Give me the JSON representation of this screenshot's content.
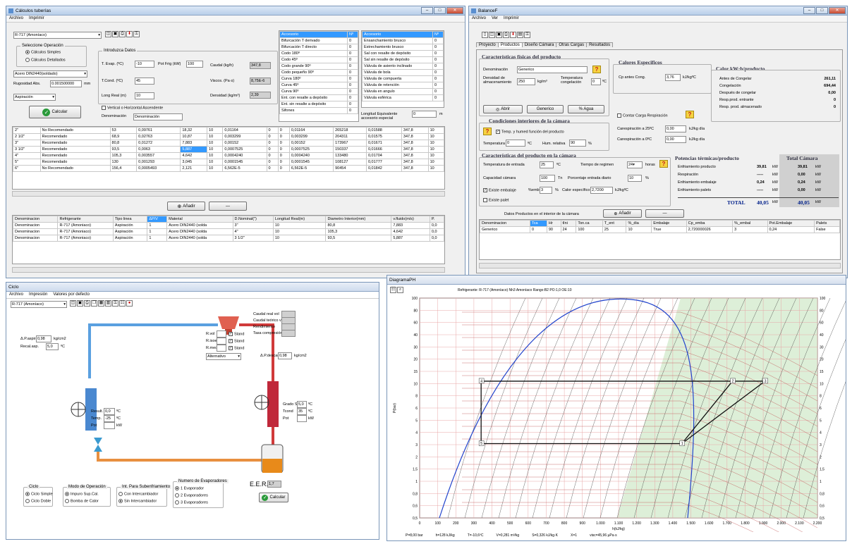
{
  "tuberias": {
    "title": "Cálculos tuberías",
    "menu": [
      "Archivo",
      "Imprimir"
    ],
    "refrigerant": "R-717 (Amoníaco)",
    "sel_op_title": "Seleccione Operación",
    "op_simple": "Cálculos Simples",
    "op_detalle": "Cálculos Detallados",
    "material": "Acero DIN2440(soldado)",
    "rug_label": "Rugosidad Abs.",
    "rug_value": "0.001500000",
    "rug_unit": "mm",
    "line_type": "Aspiración",
    "calc_button": "Calcular",
    "intro_title": "Introduzca Datos",
    "tevap_label": "T. Evap. (ºC)",
    "tevap_value": "-10",
    "pot_label": "Pot Frig (kW)",
    "pot_value": "100",
    "caudal_label": "Caudal (kg/h)",
    "caudal_value": "347,8",
    "tcond_label": "T.Cond. (ºC)",
    "tcond_value": "45",
    "visc_label": "Viscos. (Pa·s)",
    "visc_value": "8,75E-6",
    "long_label": "Long Real (m)",
    "long_value": "10",
    "dens_label": "Densidad (kg/m³)",
    "dens_value": "2,39",
    "vertical": "Vertical o Horizontal Ascendente",
    "denom_label": "Denominación",
    "denom_value": "Denominación",
    "acc_headers": [
      "Accesorio",
      "Nº"
    ],
    "acc1": [
      [
        "Bifurcación T derivado",
        "0"
      ],
      [
        "Bifurcación T directo",
        "0"
      ],
      [
        "Codo 180º",
        "0"
      ],
      [
        "Codo 45º",
        "0"
      ],
      [
        "Codo grande 90º",
        "0"
      ],
      [
        "Codo pequeño 90º",
        "0"
      ],
      [
        "Curva 180º",
        "0"
      ],
      [
        "Curva 45º",
        "0"
      ],
      [
        "Curva 90º",
        "0"
      ],
      [
        "Ent. con resalte a depósito",
        "0"
      ],
      [
        "Ent. sin resalte a depósito",
        "0"
      ],
      [
        "Sifones",
        "0"
      ]
    ],
    "acc2": [
      [
        "Ensanchamiento brusco",
        "0"
      ],
      [
        "Estrechamiento brusco",
        "0"
      ],
      [
        "Sal con resalte de depósito",
        "0"
      ],
      [
        "Sal sin resalte de depósito",
        "0"
      ],
      [
        "Válvula de asiento inclinado",
        "0"
      ],
      [
        "Válvula de bola",
        "0"
      ],
      [
        "Válvula de compuerta",
        "0"
      ],
      [
        "Válvula de retención",
        "0"
      ],
      [
        "Válvula en angulo",
        "0"
      ],
      [
        "Válvula esférica",
        "0"
      ]
    ],
    "leq_label": "Longitud Equivalente accesorio especial",
    "leq_value": "0",
    "leq_unit": "m",
    "results": [
      [
        "2\"",
        "No Recomendado",
        "53",
        "0,09761",
        "18,32",
        "10",
        "0,01164",
        "0",
        "0",
        "0,01164",
        "265218",
        "0,01588",
        "347,8",
        "10"
      ],
      [
        "2 1/2\"",
        "Recomendado",
        "68,9",
        "0,02763",
        "10,87",
        "10",
        "0,003299",
        "0",
        "0",
        "0,003299",
        "204311",
        "0,01575",
        "347,8",
        "10"
      ],
      [
        "3\"",
        "Recomendado",
        "80,8",
        "0,01272",
        "7,883",
        "10",
        "0,00152",
        "0",
        "0",
        "0,00152",
        "173967",
        "0,01671",
        "347,8",
        "10"
      ],
      [
        "3 1/2\"",
        "Recomendado",
        "93,5",
        "0,0063",
        "5,887",
        "10",
        "0,0007525",
        "0",
        "0",
        "0,0007525",
        "150337",
        "0,01666",
        "347,8",
        "10"
      ],
      [
        "4\"",
        "Recomendado",
        "105,3",
        "0,003557",
        "4,642",
        "10",
        "0,0004240",
        "0",
        "0",
        "0,0004240",
        "133480",
        "0,01704",
        "347,8",
        "10"
      ],
      [
        "5\"",
        "Recomendado",
        "130",
        "0,001293",
        "3,045",
        "10",
        "0,0001545",
        "0",
        "0",
        "0,0001545",
        "108127",
        "0,01777",
        "347,8",
        "10"
      ],
      [
        "6\"",
        "No Recomendado",
        "156,4",
        "0,0005493",
        "2,121",
        "10",
        "6,562E-5",
        "0",
        "0",
        "6,562E-5",
        "90454",
        "0,01842",
        "347,8",
        "10"
      ]
    ],
    "add_button": "Añadir",
    "minus_button": "—",
    "lower_headers": [
      "Denominacion",
      "Refrigerante",
      "Tipo linea",
      "ΔP/V",
      "Material",
      "D.Nominal(\")",
      "Longitud Real(m)",
      "Diametro Interior(mm)",
      "v.fluido(m/s)",
      "P."
    ],
    "lower_rows": [
      [
        "Denominacion",
        "R-717 (Amoniaco)",
        "Aspiración",
        "1",
        "Acero DIN2440 (solda",
        "3\"",
        "10",
        "80,8",
        "7,883",
        "0,0"
      ],
      [
        "Denominacion",
        "R-717 (Amoniaco)",
        "Aspiración",
        "1",
        "Acero DIN2440 (solda",
        "4\"",
        "10",
        "105,3",
        "4,642",
        "0,0"
      ],
      [
        "Denominacion",
        "R-717 (Amoniaco)",
        "Aspiración",
        "1",
        "Acero DIN2440 (solda",
        "3 1/2\"",
        "10",
        "93,5",
        "5,887",
        "0,0"
      ]
    ]
  },
  "balance": {
    "title": "BalanceF",
    "menu": [
      "Archivo",
      "Ver",
      "Imprimir"
    ],
    "tabs": [
      "Proyecto",
      "Productos",
      "Diseño Cámara",
      "Otras Cargas",
      "Resultados"
    ],
    "carac_title": "Características físicas del producto",
    "denom_label": "Denominación",
    "denom_value": "Generico",
    "dens_label": "Densidad de almacenamiento",
    "dens_value": "250",
    "dens_unit": "kg/m³",
    "tcong_label": "Temperatura congelación",
    "tcong_value": "0",
    "tcong_unit": "ºC",
    "abrir": "Abrir",
    "generico": "Generico",
    "agua": "% Agua",
    "calores_title": "Calores Especificos",
    "cp_label": "Cp antes Cong.",
    "cp_value": "3,76",
    "cp_unit": "kJ/kgºC",
    "carga_resp": "Contar Carga Respiración",
    "resp25_label": "Carespiración a 25ºC",
    "resp25_value": "0,00",
    "resp_unit": "kJ/kg día",
    "resp0_label": "Carespiración a 0ºC",
    "resp0_value": "0,00",
    "calor_title": "Calor kW·h/producto",
    "calor_rows": [
      [
        "Antes de Congelar",
        "261,11"
      ],
      [
        "Congelación",
        "694,44"
      ],
      [
        "Después de congelar",
        "0,00"
      ],
      [
        "Resp.prod. entrante",
        "0"
      ],
      [
        "Resp. prod. almacenado",
        "0"
      ]
    ],
    "cond_title": "Condiciones interiores de la cámara",
    "temp_humed": "Temp. y humed función del producto",
    "temp_label": "Temperatura",
    "temp_value": "0",
    "temp_unit": "ºC",
    "hum_label": "Hum. relativa",
    "hum_value": "90",
    "hum_unit": "%",
    "camara_title": "Características del producto en la cámara",
    "tent_label": "Temperatura de entrada",
    "tent_value": "25",
    "tent_unit": "ºC",
    "treg_label": "Tiempo de regimen",
    "treg_value": "24",
    "treg_unit": "horas",
    "cap_label": "Capacidad cámara",
    "cap_value": "100",
    "cap_unit": "Tn",
    "pent_label": "Porcentaje entrada diario",
    "pent_value": "10",
    "pent_unit": "%",
    "emb_label": "Existe embalaje",
    "emb_pct_label": "%emb",
    "emb_value": "3",
    "emb_unit": "%",
    "cemb_label": "Calor específico",
    "cemb_value": "2,7200",
    "cemb_unit": "kJ/kgºC",
    "palet_label": "Existe palet",
    "pot_title": "Potencias térmicas/producto",
    "total_title": "Total Cámara",
    "pot_rows": [
      [
        "Enfriamiento producto",
        "39,81",
        "kW",
        "39,81",
        "kW"
      ],
      [
        "Respiración",
        "-----",
        "kW",
        "0,00",
        "kW"
      ],
      [
        "Enfriamiento embalaje",
        "0,24",
        "kW",
        "0,24",
        "kW"
      ],
      [
        "Enfriamiento palets",
        "-----",
        "kW",
        "0,00",
        "kW"
      ]
    ],
    "total_label": "TOTAL",
    "total_value": "40,05",
    "total_value2": "40,05",
    "kw": "kW",
    "datos_title": "Datos Productos en el interior de la cámara",
    "add_button": "Añadir",
    "minus_button": "—",
    "prod_headers": [
      "Denominacion",
      "Tca",
      "Hr",
      "tIni",
      "Ton.ca",
      "T_ent",
      "%_dia",
      "Embalaje",
      "Cp_emba",
      "%_embal",
      "Pot.Embalaje",
      "Palets"
    ],
    "prod_row": [
      "Generico",
      "0",
      "90",
      "24",
      "100",
      "25",
      "10",
      "True",
      "2,720000026",
      "3",
      "0,24",
      "False"
    ]
  },
  "ciclo": {
    "title": "Ciclo",
    "menu": [
      "Archivo",
      "Impresión",
      "Valores por defecto"
    ],
    "refrigerant": "R-717 (Amoníaco)",
    "paspir_label": "Δ.P.aspiración",
    "paspir_value": "0,98",
    "paspir_unit": "kg/cm2",
    "recal_label": "Recal.asp.",
    "recal_value": "5,0",
    "recal_unit": "ºC",
    "caudal_real_label": "Caudal real vol",
    "caudal_teo_label": "Caudal teórico vol",
    "rend_label": "Rendimiento",
    "tasa_label": "Tasa compresión",
    "rvol": "R.vol",
    "risoen": "R.isoen",
    "rmec": "R.mec",
    "stand": "Stand",
    "alternativo": "Alternativo",
    "pdescar_label": "Δ.P.descar",
    "pdescar_value": "0,98",
    "pdescar_unit": "kg/cm2",
    "result_label": "Result.",
    "result_value": "0,0",
    "result_unit": "ºC",
    "temp_label": "Temp.",
    "temp_value": "-25",
    "temp_unit": "ºC",
    "pot_label": "Pot",
    "pot_unit": "kW",
    "grado_label": "Grado Sub.",
    "grado_value": "5,0",
    "grado_unit": "ºC",
    "tcond_label": "Tcond",
    "tcond_value": "35",
    "tcond_unit": "ºC",
    "pot_cond_label": "Pot",
    "pot_cond_unit": "kW",
    "ciclo_group": "Ciclo",
    "ciclo_simple": "Ciclo Simple",
    "ciclo_doble": "Ciclo Doble",
    "modo_group": "Modo de Operación",
    "modo1": "Impuro Sup.Cal.",
    "modo2": "Bomba de Calor",
    "inter_group": "Int. Para Subenfriamiento",
    "inter1": "Con Intercambiador",
    "inter2": "Sin Intercambiador",
    "nevap_group": "Numero de Evaporadores",
    "nevap1": "1 Evaporador",
    "nevap2": "2 Evaporadores",
    "nevap3": "3 Evaporadores",
    "eer_label": "E.E.R.",
    "eer_value": "1,7",
    "calc_button": "Calcular"
  },
  "diagrama": {
    "title": "DiagramaPH",
    "header": "Refrigerante: R-717 (Amoníaco)  Nh3  Amoníaco  Rango:B2  PO:1,0  OE:10",
    "xlabel": "h(kJ/kg)",
    "ylabel": "P(bar)",
    "xticks": [
      "0",
      "100",
      "200",
      "300",
      "400",
      "500",
      "600",
      "700",
      "800",
      "900",
      "1.000",
      "1.100",
      "1.200",
      "1.300",
      "1.400",
      "1.500",
      "1.600",
      "1.700",
      "1.800",
      "1.900",
      "2.000",
      "2.100",
      "2.200"
    ],
    "yticks": [
      "100",
      "80",
      "60",
      "40",
      "30",
      "20",
      "15",
      "10",
      "8",
      "6",
      "5",
      "4",
      "3",
      "2",
      "1,5",
      "1",
      "0,8",
      "0,6",
      "0,5"
    ],
    "point_labels": [
      "1",
      "2",
      "3",
      "4",
      "5"
    ],
    "status": [
      "P=8,00 bar",
      "h=128 kJ/kg",
      "T=-10,6ºC",
      "V=0,281 m³/kg",
      "S=0,326 kJ/kg·K",
      "X=1",
      "visc=45,96 µPa·s"
    ]
  }
}
